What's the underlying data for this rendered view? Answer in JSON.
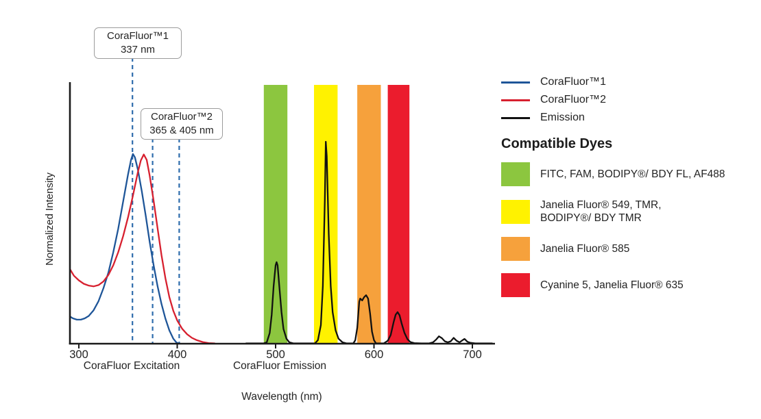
{
  "axis": {
    "xlabel": "Wavelength (nm)",
    "ylabel": "Normalized Intensity",
    "excitation_label": "CoraFluor Excitation",
    "emission_label": "CoraFluor Emission"
  },
  "callouts": [
    {
      "line1": "CoraFluor™1",
      "line2": "337 nm"
    },
    {
      "line1": "CoraFluor™2",
      "line2": "365 & 405 nm"
    }
  ],
  "legend": {
    "items": [
      {
        "label": "CoraFluor™1",
        "color": "#1E5598"
      },
      {
        "label": "CoraFluor™2",
        "color": "#D7202F"
      },
      {
        "label": "Emission",
        "color": "#111111"
      }
    ]
  },
  "dyes": {
    "heading": "Compatible Dyes",
    "items": [
      {
        "color": "#8CC63F",
        "lines": [
          "FITC, FAM, BODIPY®/ BDY FL, AF488"
        ]
      },
      {
        "color": "#FFF200",
        "lines": [
          "Janelia Fluor® 549, TMR,",
          "BODIPY®/ BDY TMR"
        ]
      },
      {
        "color": "#F6A13C",
        "lines": [
          "Janelia Fluor® 585"
        ]
      },
      {
        "color": "#EB1C2D",
        "lines": [
          "Cyanine 5, Janelia Fluor® 635"
        ]
      }
    ]
  },
  "chart_data": {
    "type": "line",
    "title": "",
    "xlabel": "Wavelength (nm)",
    "ylabel": "Normalized Intensity",
    "xlim": [
      291,
      721
    ],
    "ylim": [
      0,
      1
    ],
    "grid": false,
    "legend_position": "right",
    "x_ticks": [
      "300",
      "400",
      "500",
      "600",
      "700"
    ],
    "x_tick_values": [
      300,
      400,
      500,
      600,
      700
    ],
    "excitation_peaks_labeled_nm": {
      "CoraFluor1": 337,
      "CoraFluor2": [
        365,
        405
      ]
    },
    "marker_lines": [
      {
        "nm": 354.5,
        "anchor": "callout1",
        "style": "dashed",
        "color": "#2E6CAC"
      },
      {
        "nm": 375.0,
        "anchor": "callout2",
        "style": "dashed",
        "color": "#2E6CAC"
      },
      {
        "nm": 402.0,
        "anchor": "callout2",
        "style": "dashed",
        "color": "#2E6CAC"
      }
    ],
    "bands": [
      {
        "name": "FITC, FAM, BODIPY®/ BDY FL, AF488",
        "color": "#8CC63F",
        "nm_range": [
          488,
          512
        ]
      },
      {
        "name": "Janelia Fluor® 549, TMR, BODIPY®/ BDY TMR",
        "color": "#FFF200",
        "nm_range": [
          539,
          563
        ]
      },
      {
        "name": "Janelia Fluor® 585",
        "color": "#F6A13C",
        "nm_range": [
          583,
          607
        ]
      },
      {
        "name": "Cyanine 5, Janelia Fluor® 635",
        "color": "#EB1C2D",
        "nm_range": [
          614,
          636
        ]
      }
    ],
    "series": [
      {
        "name": "CoraFluor™1",
        "role": "excitation",
        "color": "#1E5598",
        "width": 2.3,
        "points": [
          [
            291,
            0.103
          ],
          [
            294,
            0.096
          ],
          [
            298,
            0.091
          ],
          [
            302,
            0.091
          ],
          [
            306,
            0.096
          ],
          [
            310,
            0.105
          ],
          [
            315,
            0.127
          ],
          [
            320,
            0.162
          ],
          [
            325,
            0.212
          ],
          [
            330,
            0.272
          ],
          [
            335,
            0.35
          ],
          [
            340,
            0.44
          ],
          [
            345,
            0.545
          ],
          [
            350,
            0.65
          ],
          [
            353,
            0.705
          ],
          [
            355,
            0.728
          ],
          [
            357,
            0.715
          ],
          [
            360,
            0.668
          ],
          [
            364,
            0.585
          ],
          [
            368,
            0.49
          ],
          [
            372,
            0.39
          ],
          [
            376,
            0.3
          ],
          [
            380,
            0.22
          ],
          [
            384,
            0.152
          ],
          [
            388,
            0.095
          ],
          [
            392,
            0.05
          ],
          [
            396,
            0.018
          ],
          [
            399,
            0.004
          ],
          [
            401,
            0.0
          ]
        ]
      },
      {
        "name": "CoraFluor™2",
        "role": "excitation",
        "color": "#D7202F",
        "width": 2.3,
        "points": [
          [
            291,
            0.285
          ],
          [
            295,
            0.26
          ],
          [
            300,
            0.242
          ],
          [
            305,
            0.229
          ],
          [
            310,
            0.222
          ],
          [
            315,
            0.219
          ],
          [
            320,
            0.224
          ],
          [
            325,
            0.238
          ],
          [
            330,
            0.263
          ],
          [
            335,
            0.3
          ],
          [
            340,
            0.35
          ],
          [
            345,
            0.412
          ],
          [
            350,
            0.485
          ],
          [
            355,
            0.568
          ],
          [
            360,
            0.658
          ],
          [
            363,
            0.703
          ],
          [
            366,
            0.726
          ],
          [
            369,
            0.705
          ],
          [
            372,
            0.645
          ],
          [
            376,
            0.548
          ],
          [
            380,
            0.443
          ],
          [
            384,
            0.34
          ],
          [
            388,
            0.25
          ],
          [
            392,
            0.178
          ],
          [
            396,
            0.125
          ],
          [
            400,
            0.088
          ],
          [
            405,
            0.056
          ],
          [
            410,
            0.035
          ],
          [
            415,
            0.021
          ],
          [
            420,
            0.012
          ],
          [
            426,
            0.005
          ],
          [
            432,
            0.001
          ],
          [
            438,
            0.0
          ]
        ]
      },
      {
        "name": "Emission",
        "role": "emission",
        "color": "#111111",
        "width": 2.3,
        "points": [
          [
            470,
            0.0
          ],
          [
            488,
            0.0
          ],
          [
            491,
            0.004
          ],
          [
            494,
            0.04
          ],
          [
            496,
            0.11
          ],
          [
            498,
            0.22
          ],
          [
            500,
            0.3
          ],
          [
            501,
            0.312
          ],
          [
            502,
            0.3
          ],
          [
            504,
            0.21
          ],
          [
            506,
            0.12
          ],
          [
            508,
            0.055
          ],
          [
            511,
            0.018
          ],
          [
            514,
            0.004
          ],
          [
            518,
            0.0
          ],
          [
            540,
            0.0
          ],
          [
            543,
            0.012
          ],
          [
            546,
            0.07
          ],
          [
            548,
            0.22
          ],
          [
            550,
            0.55
          ],
          [
            551,
            0.775
          ],
          [
            552,
            0.72
          ],
          [
            554,
            0.42
          ],
          [
            556,
            0.22
          ],
          [
            558,
            0.12
          ],
          [
            561,
            0.05
          ],
          [
            564,
            0.018
          ],
          [
            568,
            0.004
          ],
          [
            572,
            0.0
          ],
          [
            579,
            0.0
          ],
          [
            581,
            0.012
          ],
          [
            583,
            0.06
          ],
          [
            585,
            0.16
          ],
          [
            586,
            0.172
          ],
          [
            588,
            0.165
          ],
          [
            590,
            0.178
          ],
          [
            592,
            0.185
          ],
          [
            594,
            0.172
          ],
          [
            596,
            0.115
          ],
          [
            598,
            0.045
          ],
          [
            600,
            0.012
          ],
          [
            602,
            0.0
          ],
          [
            610,
            0.0
          ],
          [
            614,
            0.01
          ],
          [
            617,
            0.032
          ],
          [
            620,
            0.082
          ],
          [
            622,
            0.11
          ],
          [
            624,
            0.12
          ],
          [
            626,
            0.108
          ],
          [
            628,
            0.078
          ],
          [
            631,
            0.04
          ],
          [
            634,
            0.016
          ],
          [
            637,
            0.005
          ],
          [
            641,
            0.001
          ],
          [
            648,
            0.0
          ],
          [
            656,
            0.0
          ],
          [
            660,
            0.004
          ],
          [
            663,
            0.014
          ],
          [
            666,
            0.027
          ],
          [
            669,
            0.02
          ],
          [
            672,
            0.008
          ],
          [
            675,
            0.004
          ],
          [
            678,
            0.008
          ],
          [
            681,
            0.021
          ],
          [
            684,
            0.01
          ],
          [
            687,
            0.004
          ],
          [
            690,
            0.012
          ],
          [
            692,
            0.017
          ],
          [
            695,
            0.006
          ],
          [
            698,
            0.002
          ],
          [
            703,
            0.0
          ],
          [
            720,
            0.0
          ]
        ]
      }
    ],
    "emission_peaks_nm": [
      501,
      551,
      592,
      624
    ],
    "minor_emission_bumps_nm": [
      666,
      681,
      692
    ]
  }
}
